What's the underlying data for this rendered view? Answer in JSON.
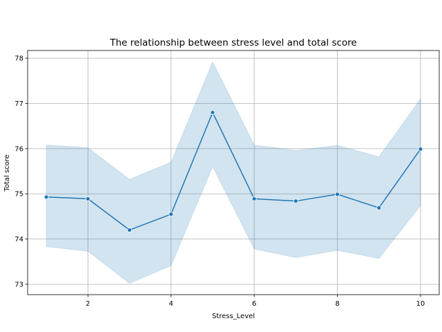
{
  "chart_data": {
    "type": "line",
    "title": "The relationship between stress level and total score",
    "xlabel": "Stress_Level",
    "ylabel": "Total score",
    "xlim": [
      0.55,
      10.45
    ],
    "ylim": [
      72.77,
      78.17
    ],
    "xticks": [
      2,
      4,
      6,
      8,
      10
    ],
    "yticks": [
      73,
      74,
      75,
      76,
      77,
      78
    ],
    "grid": true,
    "colors": {
      "line": "#1f77b4",
      "band": "#1f77b4"
    },
    "series": [
      {
        "x": [
          1,
          2,
          3,
          4,
          5,
          6,
          7,
          8,
          9,
          10
        ],
        "values": [
          74.93,
          74.89,
          74.2,
          74.55,
          76.8,
          74.89,
          74.84,
          74.99,
          74.69,
          75.99
        ],
        "ci_low": [
          73.83,
          73.73,
          73.02,
          73.41,
          75.6,
          73.78,
          73.59,
          73.75,
          73.57,
          74.74
        ],
        "ci_high": [
          76.08,
          76.02,
          75.32,
          75.7,
          77.92,
          76.08,
          75.96,
          76.07,
          75.82,
          77.1
        ]
      }
    ]
  }
}
